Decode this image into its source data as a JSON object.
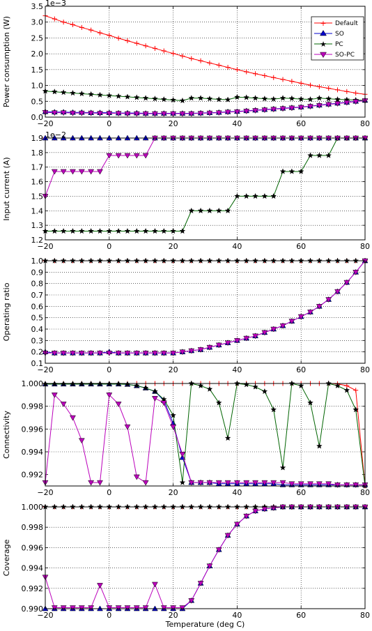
{
  "chart_data": [
    {
      "type": "line",
      "ylabel": "Power consumption (W)",
      "multiplier": "1e−3",
      "xlim": [
        -20,
        80
      ],
      "ylim": [
        0.0,
        3.5
      ],
      "xticks": [
        "−20",
        "0",
        "20",
        "40",
        "60",
        "80"
      ],
      "yticks": [
        "0.0",
        "0.5",
        "1.0",
        "1.5",
        "2.0",
        "2.5",
        "3.0",
        "3.5"
      ],
      "legend": {
        "placement": "top-right",
        "entries": [
          "Default",
          "SO",
          "PC",
          "SO-PC"
        ]
      },
      "series": [
        {
          "name": "Default",
          "color": "#ff0000",
          "marker": "plus"
        },
        {
          "name": "SO",
          "color": "#0000cc",
          "marker": "triangle-up"
        },
        {
          "name": "PC",
          "color": "#006400",
          "marker": "star"
        },
        {
          "name": "SO-PC",
          "color": "#bb00bb",
          "marker": "triangle-down"
        }
      ]
    },
    {
      "type": "line",
      "ylabel": "Input current (A)",
      "multiplier": "1e−2",
      "xlim": [
        -20,
        80
      ],
      "ylim": [
        1.2,
        1.9
      ],
      "xticks": [
        "−20",
        "0",
        "20",
        "40",
        "60",
        "80"
      ],
      "yticks": [
        "1.2",
        "1.3",
        "1.4",
        "1.5",
        "1.6",
        "1.7",
        "1.8",
        "1.9"
      ]
    },
    {
      "type": "line",
      "ylabel": "Operating ratio",
      "xlim": [
        -20,
        80
      ],
      "ylim": [
        0.1,
        1.0
      ],
      "xticks": [
        "−20",
        "0",
        "20",
        "40",
        "60",
        "80"
      ],
      "yticks": [
        "0.1",
        "0.2",
        "0.3",
        "0.4",
        "0.5",
        "0.6",
        "0.7",
        "0.8",
        "0.9",
        "1.0"
      ]
    },
    {
      "type": "line",
      "ylabel": "Connectivity",
      "xlim": [
        -20,
        80
      ],
      "ylim": [
        0.991,
        1.0
      ],
      "xticks": [
        "−20",
        "0",
        "20",
        "40",
        "60",
        "80"
      ],
      "yticks": [
        "0.992",
        "0.994",
        "0.996",
        "0.998",
        "1.000"
      ]
    },
    {
      "type": "line",
      "ylabel": "Coverage",
      "xlabel": "Temperature (deg C)",
      "xlim": [
        -20,
        80
      ],
      "ylim": [
        0.99,
        1.0
      ],
      "xticks": [
        "−20",
        "0",
        "20",
        "40",
        "60",
        "80"
      ],
      "yticks": [
        "0.990",
        "0.992",
        "0.994",
        "0.996",
        "0.998",
        "1.000"
      ]
    }
  ],
  "chart_series_values": {
    "temperatures": [
      -20,
      -17.1,
      -14.3,
      -11.4,
      -8.6,
      -5.7,
      -2.9,
      0,
      2.9,
      5.7,
      8.6,
      11.4,
      14.3,
      17.1,
      20,
      22.9,
      25.7,
      28.6,
      31.4,
      34.3,
      37.1,
      40,
      42.9,
      45.7,
      48.6,
      51.4,
      54.3,
      57.1,
      60,
      62.9,
      65.7,
      68.6,
      71.4,
      74.3,
      77.1,
      80
    ],
    "power": {
      "Default": [
        3.2,
        3.1,
        3.0,
        2.92,
        2.83,
        2.75,
        2.66,
        2.58,
        2.49,
        2.41,
        2.33,
        2.25,
        2.17,
        2.09,
        2.01,
        1.93,
        1.85,
        1.78,
        1.71,
        1.64,
        1.57,
        1.5,
        1.43,
        1.37,
        1.31,
        1.25,
        1.19,
        1.13,
        1.07,
        1.01,
        0.96,
        0.91,
        0.86,
        0.81,
        0.76,
        0.72
      ],
      "SO": [
        0.17,
        0.16,
        0.16,
        0.15,
        0.15,
        0.14,
        0.14,
        0.14,
        0.13,
        0.13,
        0.13,
        0.12,
        0.12,
        0.12,
        0.12,
        0.12,
        0.12,
        0.13,
        0.14,
        0.15,
        0.17,
        0.18,
        0.2,
        0.22,
        0.24,
        0.26,
        0.28,
        0.3,
        0.32,
        0.35,
        0.38,
        0.41,
        0.44,
        0.47,
        0.5,
        0.53
      ],
      "PC": [
        0.82,
        0.8,
        0.78,
        0.76,
        0.74,
        0.72,
        0.7,
        0.68,
        0.66,
        0.64,
        0.62,
        0.6,
        0.58,
        0.56,
        0.54,
        0.52,
        0.6,
        0.6,
        0.58,
        0.56,
        0.55,
        0.63,
        0.62,
        0.6,
        0.58,
        0.57,
        0.6,
        0.59,
        0.57,
        0.56,
        0.6,
        0.58,
        0.56,
        0.55,
        0.54,
        0.53
      ],
      "SO-PC": [
        0.15,
        0.14,
        0.14,
        0.13,
        0.13,
        0.13,
        0.12,
        0.12,
        0.12,
        0.11,
        0.11,
        0.11,
        0.11,
        0.11,
        0.11,
        0.11,
        0.11,
        0.12,
        0.13,
        0.14,
        0.16,
        0.17,
        0.19,
        0.21,
        0.23,
        0.25,
        0.27,
        0.29,
        0.31,
        0.34,
        0.37,
        0.4,
        0.43,
        0.46,
        0.49,
        0.52
      ]
    },
    "current": {
      "Default": [
        1.9,
        1.9,
        1.9,
        1.9,
        1.9,
        1.9,
        1.9,
        1.9,
        1.9,
        1.9,
        1.9,
        1.9,
        1.9,
        1.9,
        1.9,
        1.9,
        1.9,
        1.9,
        1.9,
        1.9,
        1.9,
        1.9,
        1.9,
        1.9,
        1.9,
        1.9,
        1.9,
        1.9,
        1.9,
        1.9,
        1.9,
        1.9,
        1.9,
        1.9,
        1.9,
        1.9
      ],
      "SO": [
        1.9,
        1.9,
        1.9,
        1.9,
        1.9,
        1.9,
        1.9,
        1.9,
        1.9,
        1.9,
        1.9,
        1.9,
        1.9,
        1.9,
        1.9,
        1.9,
        1.9,
        1.9,
        1.9,
        1.9,
        1.9,
        1.9,
        1.9,
        1.9,
        1.9,
        1.9,
        1.9,
        1.9,
        1.9,
        1.9,
        1.9,
        1.9,
        1.9,
        1.9,
        1.9,
        1.9
      ],
      "PC": [
        1.26,
        1.26,
        1.26,
        1.26,
        1.26,
        1.26,
        1.26,
        1.26,
        1.26,
        1.26,
        1.26,
        1.26,
        1.26,
        1.26,
        1.26,
        1.26,
        1.4,
        1.4,
        1.4,
        1.4,
        1.4,
        1.5,
        1.5,
        1.5,
        1.5,
        1.5,
        1.67,
        1.67,
        1.67,
        1.78,
        1.78,
        1.78,
        1.9,
        1.9,
        1.9,
        1.9
      ],
      "SO-PC": [
        1.5,
        1.67,
        1.67,
        1.67,
        1.67,
        1.67,
        1.67,
        1.78,
        1.78,
        1.78,
        1.78,
        1.78,
        1.9,
        1.9,
        1.9,
        1.9,
        1.9,
        1.9,
        1.9,
        1.9,
        1.9,
        1.9,
        1.9,
        1.9,
        1.9,
        1.9,
        1.9,
        1.9,
        1.9,
        1.9,
        1.9,
        1.9,
        1.9,
        1.9,
        1.9,
        1.9
      ]
    },
    "ratio": {
      "Default": [
        1,
        1,
        1,
        1,
        1,
        1,
        1,
        1,
        1,
        1,
        1,
        1,
        1,
        1,
        1,
        1,
        1,
        1,
        1,
        1,
        1,
        1,
        1,
        1,
        1,
        1,
        1,
        1,
        1,
        1,
        1,
        1,
        1,
        1,
        1,
        1
      ],
      "SO": [
        0.2,
        0.19,
        0.19,
        0.19,
        0.19,
        0.19,
        0.19,
        0.2,
        0.19,
        0.19,
        0.19,
        0.19,
        0.19,
        0.19,
        0.19,
        0.2,
        0.21,
        0.22,
        0.24,
        0.26,
        0.28,
        0.3,
        0.32,
        0.34,
        0.37,
        0.4,
        0.43,
        0.47,
        0.51,
        0.55,
        0.6,
        0.66,
        0.73,
        0.81,
        0.9,
        1.0
      ],
      "PC": [
        1,
        1,
        1,
        1,
        1,
        1,
        1,
        1,
        1,
        1,
        1,
        1,
        1,
        1,
        1,
        1,
        1,
        1,
        1,
        1,
        1,
        1,
        1,
        1,
        1,
        1,
        1,
        1,
        1,
        1,
        1,
        1,
        1,
        1,
        1,
        1
      ],
      "SO-PC": [
        0.19,
        0.19,
        0.19,
        0.19,
        0.19,
        0.19,
        0.19,
        0.19,
        0.19,
        0.19,
        0.19,
        0.19,
        0.19,
        0.19,
        0.19,
        0.2,
        0.21,
        0.22,
        0.24,
        0.26,
        0.28,
        0.3,
        0.32,
        0.34,
        0.37,
        0.4,
        0.43,
        0.47,
        0.51,
        0.55,
        0.6,
        0.66,
        0.73,
        0.81,
        0.9,
        1.0
      ]
    },
    "connectivity": {
      "Default": [
        1,
        1,
        1,
        1,
        1,
        1,
        1,
        1,
        1,
        1,
        1,
        1,
        1,
        1,
        1,
        1,
        1,
        1,
        1,
        1,
        1,
        1,
        1,
        1,
        1,
        1,
        1,
        1,
        1,
        1,
        1,
        1,
        0.99997,
        0.9998,
        0.9994,
        0.991
      ],
      "SO": [
        0.99995,
        0.99995,
        0.99995,
        0.99995,
        0.99995,
        0.99995,
        0.99995,
        0.99995,
        0.99995,
        0.99992,
        0.9998,
        0.9996,
        0.9993,
        0.9985,
        0.9965,
        0.9935,
        0.9913,
        0.9913,
        0.9913,
        0.9912,
        0.9912,
        0.9912,
        0.9912,
        0.9912,
        0.9912,
        0.9912,
        0.9911,
        0.9911,
        0.9911,
        0.9911,
        0.9911,
        0.9911,
        0.9911,
        0.9911,
        0.9911,
        0.9911
      ],
      "PC": [
        0.99995,
        0.99995,
        0.99995,
        0.99995,
        0.99995,
        0.99995,
        0.99995,
        0.99995,
        0.99995,
        0.99992,
        0.9998,
        0.9996,
        0.9993,
        0.9986,
        0.9972,
        0.9913,
        1,
        0.9998,
        0.9995,
        0.9983,
        0.9952,
        1,
        0.9999,
        0.9997,
        0.9993,
        0.9977,
        0.9926,
        1,
        0.9998,
        0.9983,
        0.9945,
        1,
        0.9998,
        0.9994,
        0.9977,
        0.991
      ],
      "SO-PC": [
        0.9913,
        0.999,
        0.9982,
        0.997,
        0.995,
        0.9913,
        0.9913,
        0.999,
        0.9982,
        0.9962,
        0.9918,
        0.9913,
        0.9987,
        0.9983,
        0.9962,
        0.9938,
        0.9913,
        0.9913,
        0.9913,
        0.9913,
        0.9913,
        0.9913,
        0.9913,
        0.9913,
        0.9913,
        0.9913,
        0.9913,
        0.9912,
        0.9912,
        0.9912,
        0.9912,
        0.9912,
        0.9911,
        0.9911,
        0.9911,
        0.9911
      ]
    },
    "coverage": {
      "Default": [
        1,
        1,
        1,
        1,
        1,
        1,
        1,
        1,
        1,
        1,
        1,
        1,
        1,
        1,
        1,
        1,
        1,
        1,
        1,
        1,
        1,
        1,
        1,
        1,
        1,
        1,
        1,
        1,
        1,
        1,
        1,
        1,
        1,
        1,
        1,
        1
      ],
      "SO": [
        0.99,
        0.99,
        0.99,
        0.99,
        0.99,
        0.99,
        0.99,
        0.99,
        0.99,
        0.99,
        0.99,
        0.99,
        0.99,
        0.99,
        0.99,
        0.99,
        0.9908,
        0.9925,
        0.9942,
        0.9958,
        0.9972,
        0.9983,
        0.9991,
        0.9996,
        0.9998,
        0.9999,
        1,
        1,
        1,
        1,
        1,
        1,
        1,
        1,
        1,
        1
      ],
      "PC": [
        1,
        1,
        1,
        1,
        1,
        1,
        1,
        1,
        1,
        1,
        1,
        1,
        1,
        1,
        1,
        1,
        1,
        1,
        1,
        1,
        1,
        1,
        1,
        1,
        1,
        1,
        1,
        1,
        1,
        1,
        1,
        1,
        1,
        1,
        1,
        1
      ],
      "SO-PC": [
        0.9931,
        0.9901,
        0.9901,
        0.9901,
        0.9901,
        0.9901,
        0.9923,
        0.9901,
        0.9901,
        0.9901,
        0.9901,
        0.9901,
        0.9924,
        0.9901,
        0.9901,
        0.9901,
        0.9908,
        0.9925,
        0.9942,
        0.9958,
        0.9972,
        0.9983,
        0.9991,
        0.9996,
        0.9998,
        0.9999,
        1,
        1,
        1,
        1,
        1,
        1,
        1,
        1,
        1,
        1
      ]
    }
  },
  "panel_keys": [
    "power",
    "current",
    "ratio",
    "connectivity",
    "coverage"
  ]
}
